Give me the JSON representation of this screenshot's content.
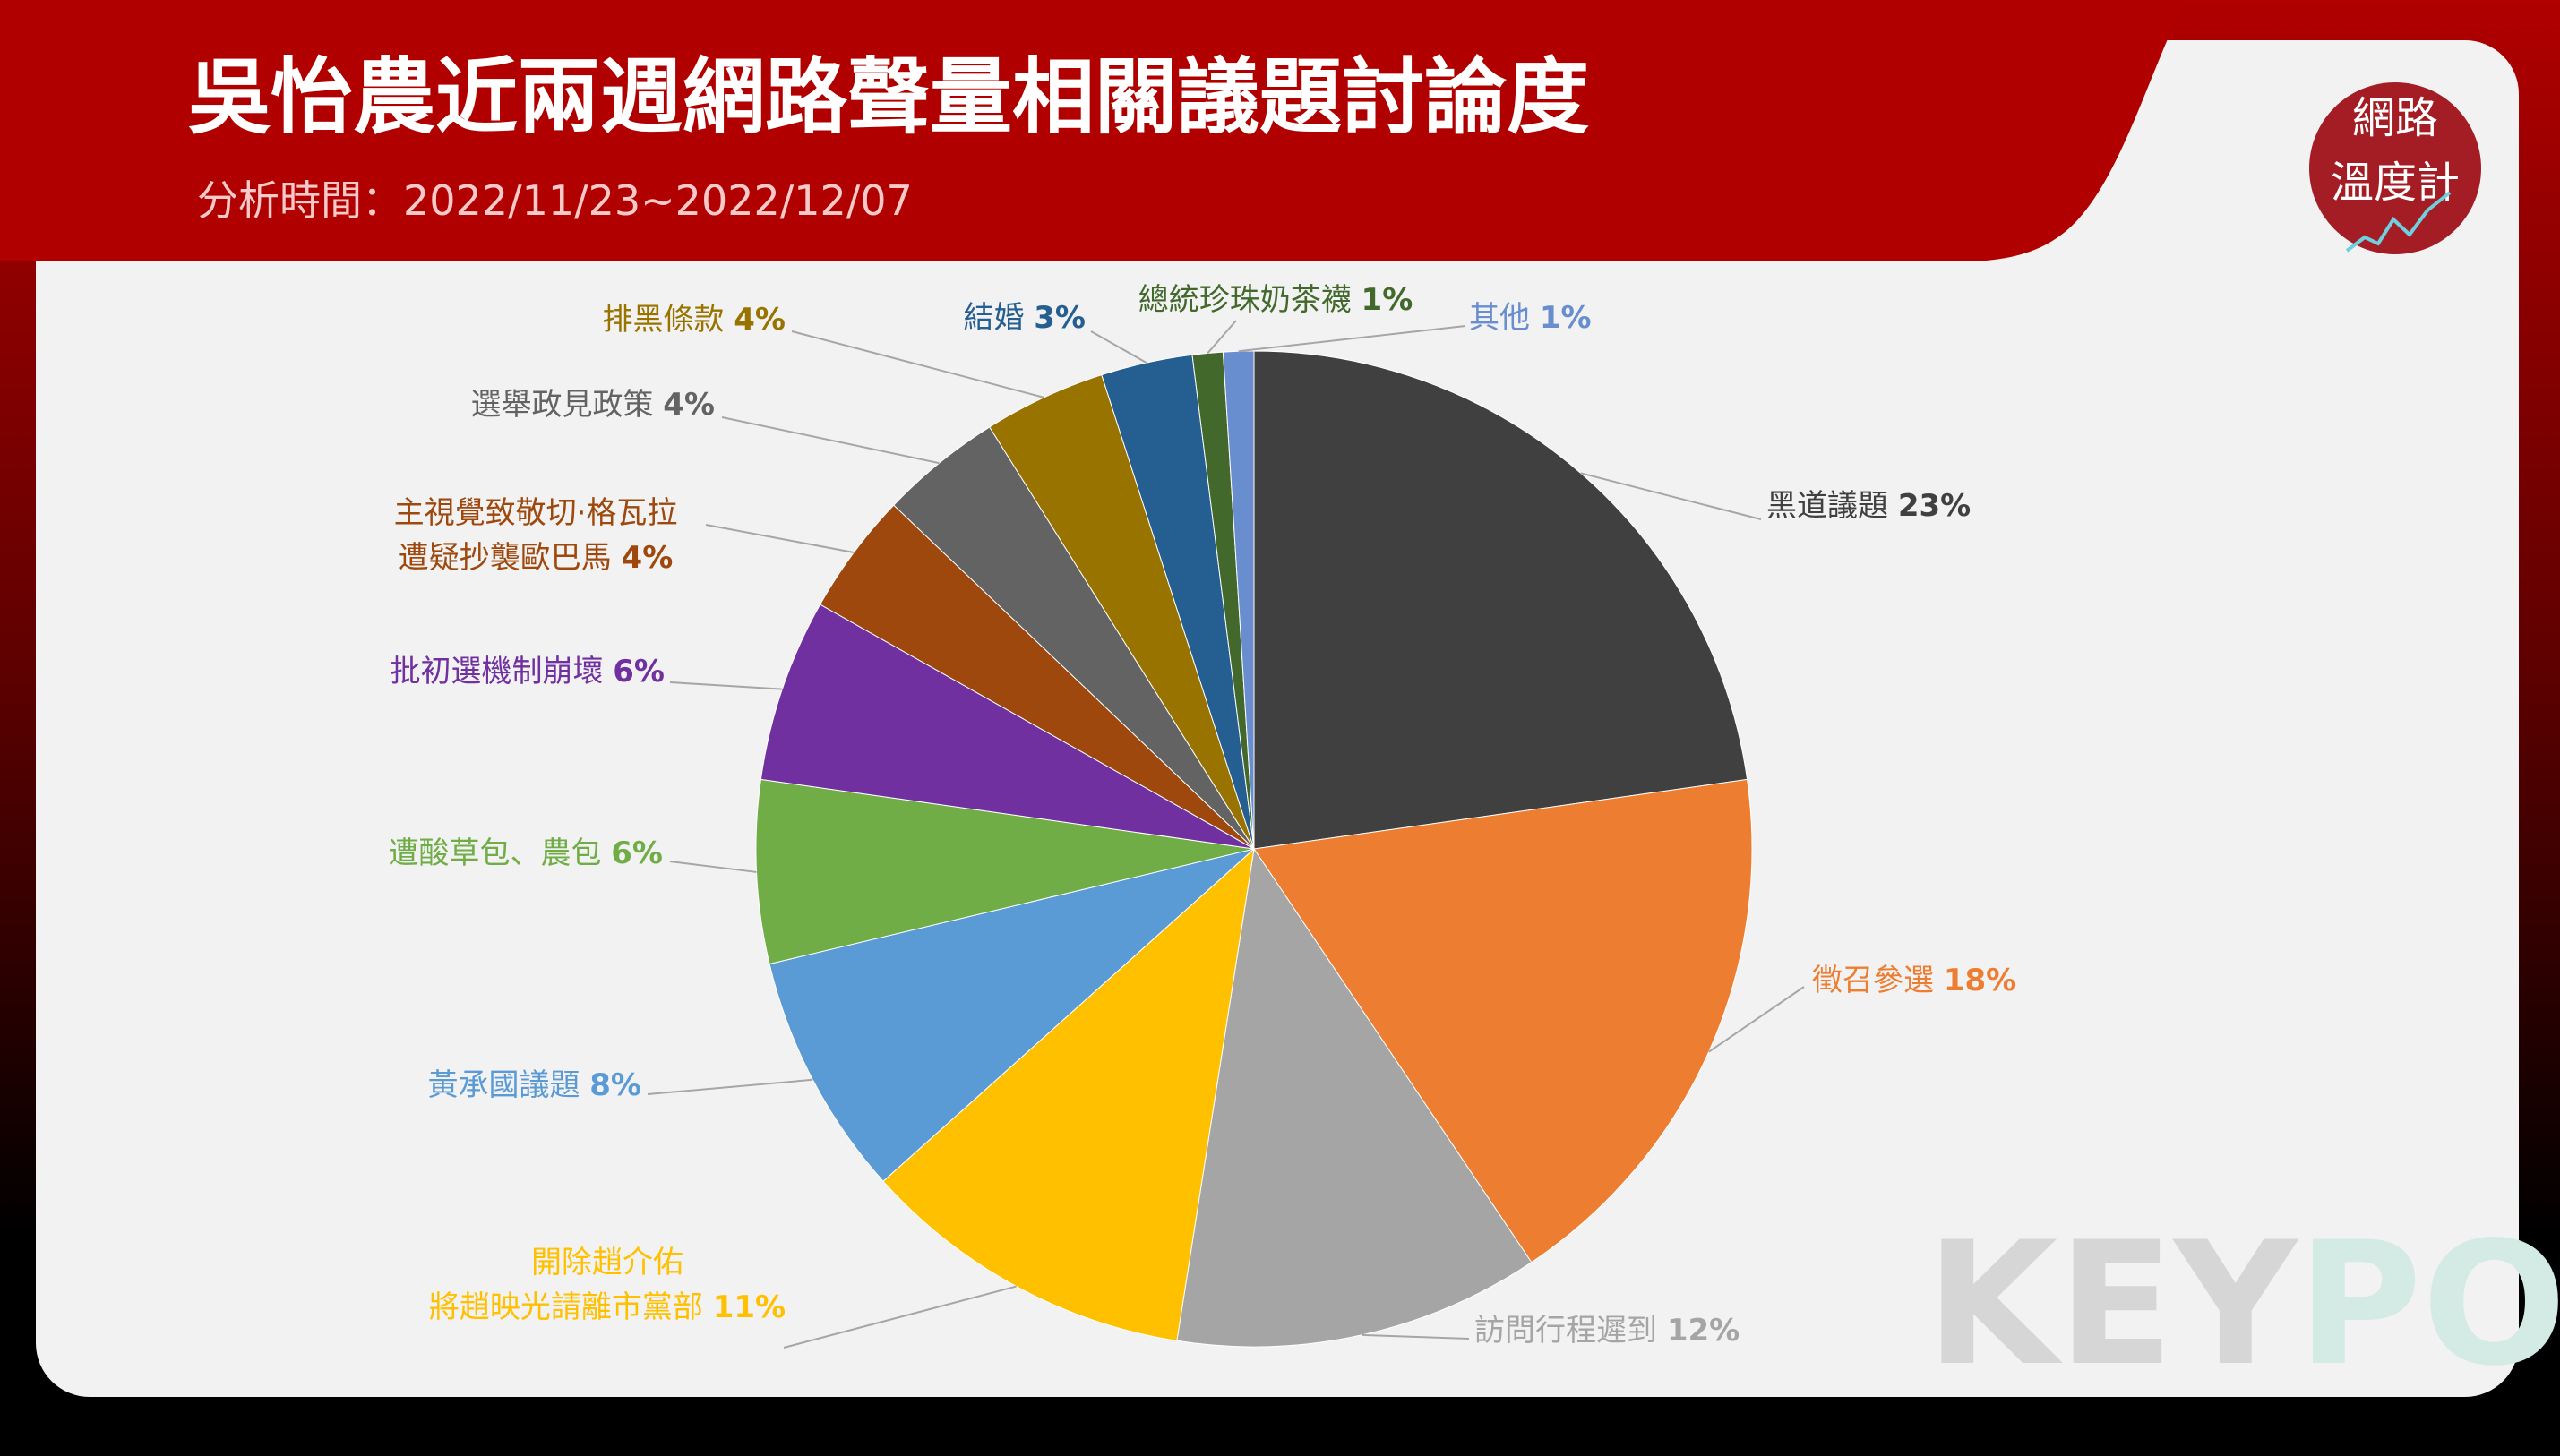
{
  "header": {
    "title": "吳怡農近兩週網路聲量相關議題討論度",
    "subtitle": "分析時間：2022/11/23~2022/12/07"
  },
  "branding": {
    "logo": [
      "網路",
      "溫度計"
    ],
    "watermark": [
      "KEY",
      "PO"
    ]
  },
  "chart_data": {
    "type": "pie",
    "categories": [
      "黑道議題",
      "徵召參選",
      "訪問行程遲到",
      "開除趙介佑\n將趙映光請離市黨部",
      "黃承國議題",
      "遭酸草包、農包",
      "批初選機制崩壞",
      "主視覺致敬切·格瓦拉\n遭疑抄襲歐巴馬",
      "選舉政見政策",
      "排黑條款",
      "結婚",
      "總統珍珠奶茶襪",
      "其他"
    ],
    "values": [
      23,
      18,
      12,
      11,
      8,
      6,
      6,
      4,
      4,
      4,
      3,
      1,
      1
    ],
    "value_labels": [
      "23%",
      "18%",
      "12%",
      "11%",
      "8%",
      "6%",
      "6%",
      "4%",
      "4%",
      "4%",
      "3%",
      "1%",
      "1%"
    ],
    "colors": [
      "#404040",
      "#ed7d31",
      "#a5a5a5",
      "#ffc000",
      "#5b9bd5",
      "#70ad47",
      "#7030a0",
      "#9e480e",
      "#636363",
      "#997300",
      "#255e91",
      "#43682b",
      "#698ed0"
    ]
  }
}
